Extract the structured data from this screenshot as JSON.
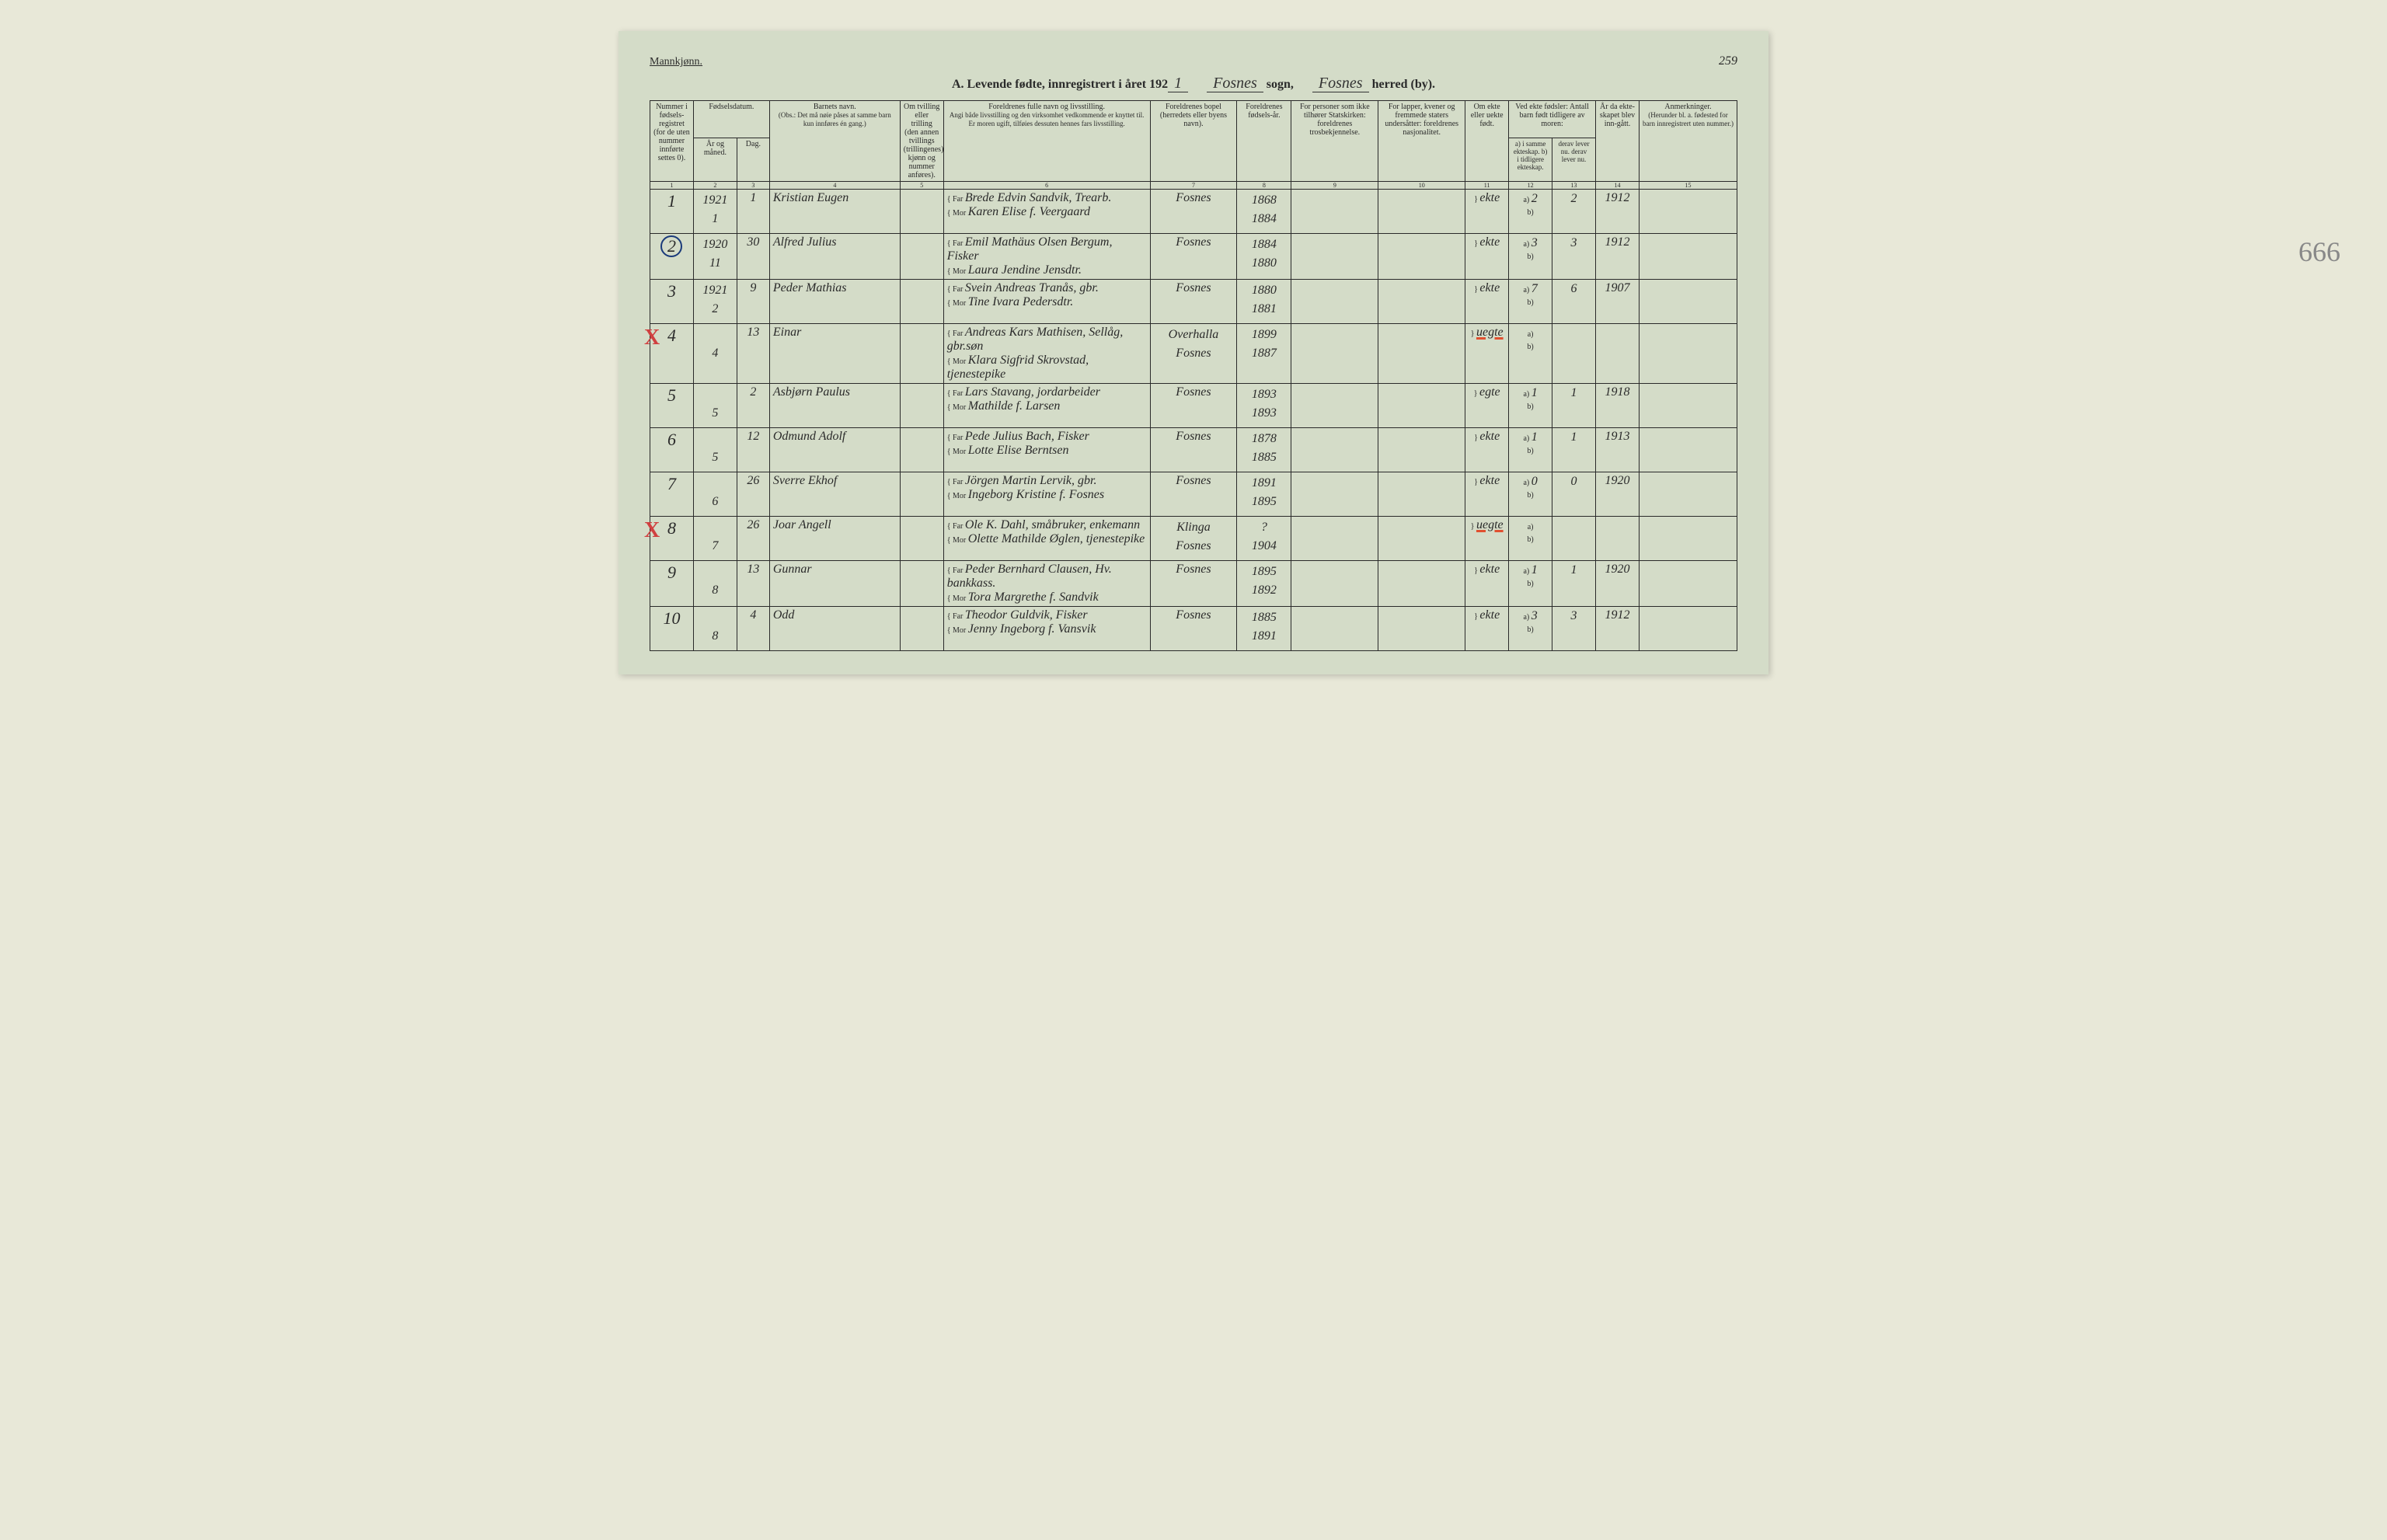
{
  "header": {
    "gender": "Mannkjønn.",
    "title_prefix": "A.  Levende fødte, innregistrert i året 192",
    "year_suffix": "1",
    "sogn_label": "sogn,",
    "sogn_value": "Fosnes",
    "herred_label": "herred (by).",
    "herred_value": "Fosnes",
    "page_number": "259",
    "big_annotation": "666"
  },
  "columns": {
    "c1": "Nummer i fødsels-registret (for de uten nummer innførte settes 0).",
    "c2_3_group": "Fødselsdatum.",
    "c2": "År og måned.",
    "c3": "Dag.",
    "c4": "Barnets navn.",
    "c4_note": "(Obs.: Det må nøie påses at samme barn kun innføres én gang.)",
    "c5": "Om tvilling eller trilling (den annen tvillings (trillingenes) kjønn og nummer anføres).",
    "c6": "Foreldrenes fulle navn og livsstilling.",
    "c6_note": "Angi både livsstilling og den virksomhet vedkommende er knyttet til. Er moren ugift, tilføies dessuten hennes fars livsstilling.",
    "c7": "Foreldrenes bopel (herredets eller byens navn).",
    "c8": "Foreldrenes fødsels-år.",
    "c9": "For personer som ikke tilhører Statskirken: foreldrenes trosbekjennelse.",
    "c10": "For lapper, kvener og fremmede staters undersåtter: foreldrenes nasjonalitet.",
    "c11": "Om ekte eller uekte født.",
    "c12_13_group": "Ved ekte fødsler: Antall barn født tidligere av moren:",
    "c12": "a) i samme ekteskap. b) i tidligere ekteskap.",
    "c13": "derav lever nu. derav lever nu.",
    "c14": "År da ekte-skapet blev inn-gått.",
    "c15": "Anmerkninger.",
    "c15_note": "(Herunder bl. a. fødested for barn innregistrert uten nummer.)",
    "far_label": "Far",
    "mor_label": "Mor"
  },
  "col_widths": {
    "c1": "4%",
    "c2": "4%",
    "c3": "3%",
    "c4": "12%",
    "c5": "4%",
    "c6": "19%",
    "c7": "8%",
    "c8": "5%",
    "c9": "8%",
    "c10": "8%",
    "c11": "4%",
    "c12": "4%",
    "c13": "4%",
    "c14": "4%",
    "c15": "9%"
  },
  "colors": {
    "paper": "#d4dcc8",
    "ink": "#2a2a2a",
    "blue": "#1a3a7a",
    "red": "#d04040",
    "pencil": "#888888",
    "orange": "#e05030"
  },
  "rows": [
    {
      "num": "1",
      "year_month_top": "1921",
      "year_month": "1",
      "day": "1",
      "name": "Kristian Eugen",
      "far": "Brede Edvin Sandvik, Trearb.",
      "mor": "Karen Elise f. Veergaard",
      "bopel": "Fosnes",
      "far_year": "1868",
      "mor_year": "1884",
      "ekte": "ekte",
      "a": "2",
      "a_lever": "2",
      "marriage": "1912",
      "mark": "",
      "circle": false
    },
    {
      "num": "2",
      "year_month_top": "1920",
      "year_month": "11",
      "day": "30",
      "name": "Alfred Julius",
      "far": "Emil Mathäus Olsen Bergum, Fisker",
      "mor": "Laura Jendine Jensdtr.",
      "bopel": "Fosnes",
      "far_year": "1884",
      "mor_year": "1880",
      "ekte": "ekte",
      "a": "3",
      "a_lever": "3",
      "marriage": "1912",
      "mark": "",
      "circle": true
    },
    {
      "num": "3",
      "year_month_top": "1921",
      "year_month": "2",
      "day": "9",
      "name": "Peder Mathias",
      "far": "Svein Andreas Tranås, gbr.",
      "mor": "Tine Ivara Pedersdtr.",
      "bopel": "Fosnes",
      "far_year": "1880",
      "mor_year": "1881",
      "ekte": "ekte",
      "a": "7",
      "a_lever": "6",
      "marriage": "1907",
      "mark": "",
      "circle": false
    },
    {
      "num": "4",
      "year_month_top": "",
      "year_month": "4",
      "day": "13",
      "name": "Einar",
      "far": "Andreas Kars Mathisen, Sellåg, gbr.søn",
      "mor": "Klara Sigfrid Skrovstad, tjenestepike",
      "bopel_far": "Overhalla",
      "bopel_mor": "Fosnes",
      "far_year": "1899",
      "mor_year": "1887",
      "ekte": "uegte",
      "a": "",
      "a_lever": "",
      "marriage": "",
      "mark": "X",
      "circle": false
    },
    {
      "num": "5",
      "year_month_top": "",
      "year_month": "5",
      "day": "2",
      "name": "Asbjørn Paulus",
      "far": "Lars Stavang, jordarbeider",
      "mor": "Mathilde f. Larsen",
      "bopel": "Fosnes",
      "far_year": "1893",
      "mor_year": "1893",
      "ekte": "egte",
      "a": "1",
      "a_lever": "1",
      "marriage": "1918",
      "mark": "",
      "circle": false
    },
    {
      "num": "6",
      "year_month_top": "",
      "year_month": "5",
      "day": "12",
      "name": "Odmund Adolf",
      "far": "Pede Julius Bach, Fisker",
      "mor": "Lotte Elise Berntsen",
      "bopel": "Fosnes",
      "far_year": "1878",
      "mor_year": "1885",
      "ekte": "ekte",
      "a": "1",
      "a_lever": "1",
      "marriage": "1913",
      "mark": "",
      "circle": false
    },
    {
      "num": "7",
      "year_month_top": "",
      "year_month": "6",
      "day": "26",
      "name": "Sverre Ekhof",
      "far": "Jörgen Martin Lervik, gbr.",
      "mor": "Ingeborg Kristine f. Fosnes",
      "bopel": "Fosnes",
      "far_year": "1891",
      "mor_year": "1895",
      "ekte": "ekte",
      "a": "0",
      "a_lever": "0",
      "marriage": "1920",
      "mark": "",
      "circle": false
    },
    {
      "num": "8",
      "year_month_top": "",
      "year_month": "7",
      "day": "26",
      "name": "Joar Angell",
      "far": "Ole K. Dahl, småbruker, enkemann",
      "mor": "Olette Mathilde Øglen, tjenestepike",
      "bopel_far": "Klinga",
      "bopel_mor": "Fosnes",
      "far_year": "?",
      "mor_year": "1904",
      "ekte": "uegte",
      "a": "",
      "a_lever": "",
      "marriage": "",
      "mark": "X",
      "circle": false
    },
    {
      "num": "9",
      "year_month_top": "",
      "year_month": "8",
      "day": "13",
      "name": "Gunnar",
      "far": "Peder Bernhard Clausen, Hv. bankkass.",
      "mor": "Tora Margrethe f. Sandvik",
      "bopel": "Fosnes",
      "far_year": "1895",
      "mor_year": "1892",
      "ekte": "ekte",
      "a": "1",
      "a_lever": "1",
      "marriage": "1920",
      "mark": "",
      "circle": false
    },
    {
      "num": "10",
      "year_month_top": "",
      "year_month": "8",
      "day": "4",
      "name": "Odd",
      "far": "Theodor Guldvik, Fisker",
      "mor": "Jenny Ingeborg f. Vansvik",
      "bopel": "Fosnes",
      "far_year": "1885",
      "mor_year": "1891",
      "ekte": "ekte",
      "a": "3",
      "a_lever": "3",
      "marriage": "1912",
      "mark": "",
      "circle": false
    }
  ]
}
